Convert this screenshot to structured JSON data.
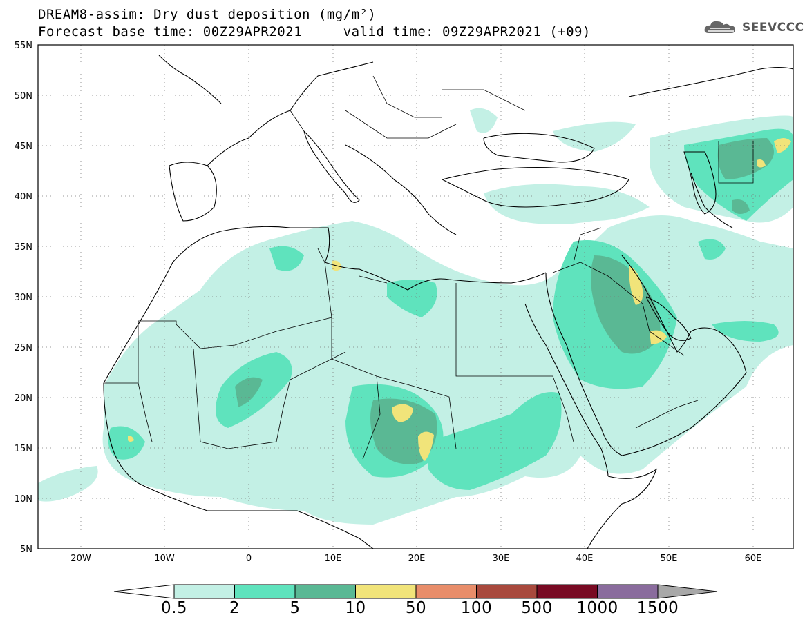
{
  "title_line1": "DREAM8-assim: Dry dust deposition (mg/m²)",
  "title_line2": "Forecast base time: 00Z29APR2021     valid time: 09Z29APR2021 (+09)",
  "logo": {
    "text": "SEEVCCC",
    "icon": "cloud-logo-icon"
  },
  "map": {
    "lat_labels": [
      "55N",
      "50N",
      "45N",
      "40N",
      "35N",
      "30N",
      "25N",
      "20N",
      "15N",
      "10N",
      "5N"
    ],
    "lon_labels": [
      "20W",
      "10W",
      "0",
      "10E",
      "20E",
      "30E",
      "40E",
      "50E",
      "60E"
    ],
    "lat_range": [
      5,
      55
    ],
    "lon_range": [
      -25,
      65
    ],
    "grid": "dotted"
  },
  "legend": {
    "levels": [
      "0.5",
      "2",
      "5",
      "10",
      "50",
      "100",
      "500",
      "1000",
      "1500"
    ],
    "colors": [
      "#c3f0e5",
      "#5fe3bd",
      "#5ab894",
      "#f1e47a",
      "#e88d6a",
      "#a8493d",
      "#780a23",
      "#8a6c9d",
      "#a8a8a8"
    ],
    "low_color": "#ffffff"
  }
}
